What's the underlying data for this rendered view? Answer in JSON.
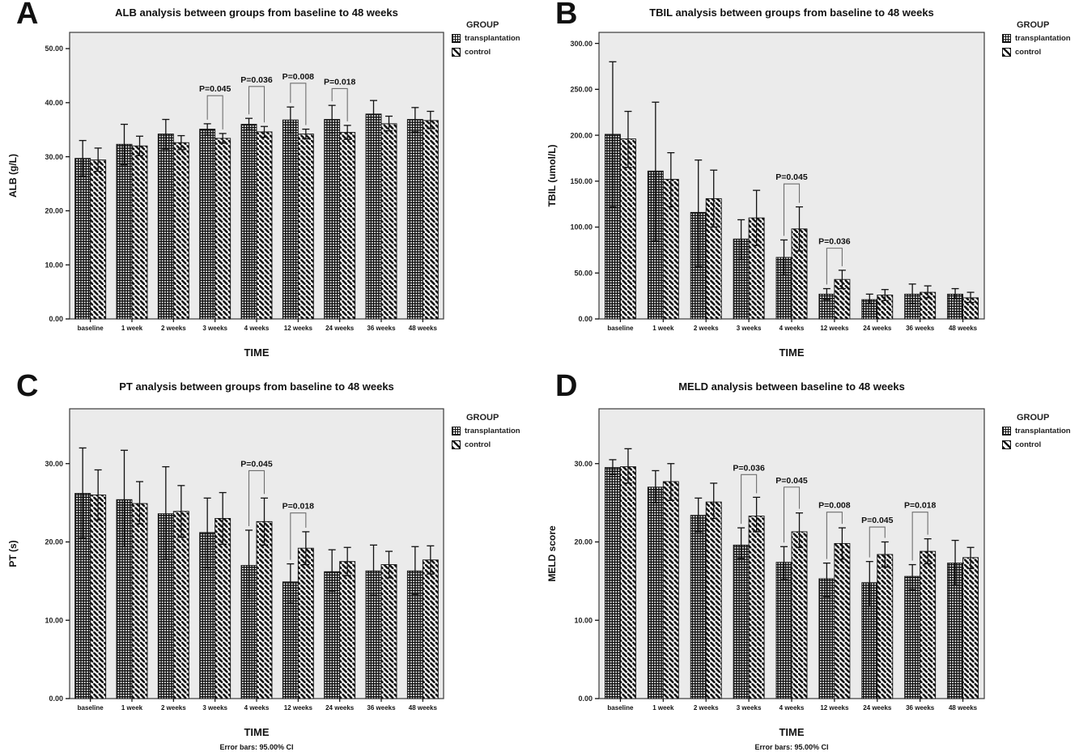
{
  "figure": {
    "background": "#ffffff",
    "plot_background": "#ebebeb",
    "bar_outline_color": "#111111",
    "bracket_color": "#6e6e6e"
  },
  "chart_data": [
    {
      "panel_label": "A",
      "type": "bar",
      "title": "ALB analysis between groups from baseline to 48 weeks",
      "xlabel": "TIME",
      "ylabel": "ALB (g/L)",
      "ylim": [
        0,
        53
      ],
      "yticks": [
        {
          "value": 0,
          "label": "0.00"
        },
        {
          "value": 10,
          "label": "10.00"
        },
        {
          "value": 20,
          "label": "20.00"
        },
        {
          "value": 30,
          "label": "30.00"
        },
        {
          "value": 40,
          "label": "40.00"
        },
        {
          "value": 50,
          "label": "50.00"
        }
      ],
      "categories": [
        "baseline",
        "1 week",
        "2 weeks",
        "3 weeks",
        "4 weeks",
        "12 weeks",
        "24 weeks",
        "36 weeks",
        "48 weeks"
      ],
      "series": [
        {
          "name": "transplantation",
          "pattern": "crosshatch",
          "values": [
            29.7,
            32.3,
            34.2,
            35.1,
            36.0,
            36.8,
            36.9,
            37.9,
            36.9
          ],
          "ci_upper": [
            33.0,
            36.0,
            36.9,
            36.1,
            37.1,
            39.2,
            39.5,
            40.4,
            39.1
          ],
          "ci_lower": [
            26.4,
            28.5,
            31.4,
            34.0,
            35.0,
            34.4,
            34.4,
            35.4,
            34.6
          ]
        },
        {
          "name": "control",
          "pattern": "diagonal",
          "values": [
            29.4,
            32.0,
            32.6,
            33.4,
            34.6,
            34.2,
            34.5,
            36.1,
            36.7
          ],
          "ci_upper": [
            31.6,
            33.8,
            33.9,
            34.3,
            35.6,
            35.1,
            35.8,
            37.5,
            38.4
          ],
          "ci_lower": [
            27.3,
            30.2,
            31.3,
            32.5,
            33.6,
            33.3,
            33.2,
            34.8,
            35.2
          ]
        }
      ],
      "p_annotations": [
        {
          "category": "3 weeks",
          "label": "P=0.045",
          "bracket_top": 41.3
        },
        {
          "category": "4 weeks",
          "label": "P=0.036",
          "bracket_top": 43.0
        },
        {
          "category": "12 weeks",
          "label": "P=0.008",
          "bracket_top": 43.6
        },
        {
          "category": "24 weeks",
          "label": "P=0.018",
          "bracket_top": 42.6
        }
      ],
      "legend": {
        "title": "GROUP",
        "entries": [
          {
            "label": "transplantation"
          },
          {
            "label": "control"
          }
        ]
      }
    },
    {
      "panel_label": "B",
      "type": "bar",
      "title": "TBIL analysis between groups from baseline to 48 weeks",
      "xlabel": "TIME",
      "ylabel": "TBIL (umol/L)",
      "ylim": [
        0,
        312
      ],
      "yticks": [
        {
          "value": 0,
          "label": "0.00"
        },
        {
          "value": 50,
          "label": "50.00"
        },
        {
          "value": 100,
          "label": "100.00"
        },
        {
          "value": 150,
          "label": "150.00"
        },
        {
          "value": 200,
          "label": "200.00"
        },
        {
          "value": 250,
          "label": "250.00"
        },
        {
          "value": 300,
          "label": "300.00"
        }
      ],
      "categories": [
        "baseline",
        "1 week",
        "2 weeks",
        "3 weeks",
        "4 weeks",
        "12 weeks",
        "24 weeks",
        "36 weeks",
        "48 weeks"
      ],
      "series": [
        {
          "name": "transplantation",
          "pattern": "crosshatch",
          "values": [
            201,
            161,
            116,
            87,
            67,
            27,
            21,
            27,
            27
          ],
          "ci_upper": [
            280,
            236,
            173,
            108,
            86,
            33,
            27,
            38,
            33
          ],
          "ci_lower": [
            122,
            85,
            57,
            65,
            48,
            21,
            17,
            17,
            22
          ]
        },
        {
          "name": "control",
          "pattern": "diagonal",
          "values": [
            196,
            152,
            131,
            110,
            98,
            43,
            26,
            29,
            23
          ],
          "ci_upper": [
            226,
            181,
            162,
            140,
            122,
            53,
            32,
            36,
            29
          ],
          "ci_lower": [
            165,
            122,
            100,
            80,
            74,
            33,
            20,
            23,
            18
          ]
        }
      ],
      "p_annotations": [
        {
          "category": "4 weeks",
          "label": "P=0.045",
          "bracket_top": 147
        },
        {
          "category": "12 weeks",
          "label": "P=0.036",
          "bracket_top": 77
        }
      ],
      "legend": {
        "title": "GROUP",
        "entries": [
          {
            "label": "transplantation"
          },
          {
            "label": "control"
          }
        ]
      }
    },
    {
      "panel_label": "C",
      "type": "bar",
      "title": "PT analysis between groups from baseline to 48 weeks",
      "xlabel": "TIME",
      "ylabel": "PT (s)",
      "ylim": [
        0,
        37
      ],
      "yticks": [
        {
          "value": 0,
          "label": "0.00"
        },
        {
          "value": 10,
          "label": "10.00"
        },
        {
          "value": 20,
          "label": "20.00"
        },
        {
          "value": 30,
          "label": "30.00"
        }
      ],
      "categories": [
        "baseline",
        "1 week",
        "2 weeks",
        "3 weeks",
        "4 weeks",
        "12 weeks",
        "24 weeks",
        "36 weeks",
        "48 weeks"
      ],
      "series": [
        {
          "name": "transplantation",
          "pattern": "crosshatch",
          "values": [
            26.2,
            25.4,
            23.6,
            21.2,
            17.0,
            14.9,
            16.2,
            16.3,
            16.3
          ],
          "ci_upper": [
            32.0,
            31.7,
            29.6,
            25.6,
            21.5,
            17.2,
            19.0,
            19.6,
            19.4
          ],
          "ci_lower": [
            20.5,
            19.4,
            17.8,
            16.7,
            12.8,
            12.2,
            13.7,
            13.2,
            13.3
          ]
        },
        {
          "name": "control",
          "pattern": "diagonal",
          "values": [
            26.0,
            24.9,
            23.9,
            23.0,
            22.6,
            19.2,
            17.5,
            17.1,
            17.7
          ],
          "ci_upper": [
            29.2,
            27.7,
            27.2,
            26.3,
            25.6,
            21.3,
            19.3,
            18.8,
            19.5
          ],
          "ci_lower": [
            22.8,
            22.3,
            20.6,
            19.7,
            19.6,
            17.1,
            15.7,
            15.4,
            15.9
          ]
        }
      ],
      "p_annotations": [
        {
          "category": "4 weeks",
          "label": "P=0.045",
          "bracket_top": 29.1
        },
        {
          "category": "12 weeks",
          "label": "P=0.018",
          "bracket_top": 23.7
        }
      ],
      "footnote": "Error bars: 95.00% CI",
      "legend": {
        "title": "GROUP",
        "entries": [
          {
            "label": "transplantation"
          },
          {
            "label": "control"
          }
        ]
      }
    },
    {
      "panel_label": "D",
      "type": "bar",
      "title": "MELD analysis between baseline to 48 weeks",
      "xlabel": "TIME",
      "ylabel": "MELD score",
      "ylim": [
        0,
        37
      ],
      "yticks": [
        {
          "value": 0,
          "label": "0.00"
        },
        {
          "value": 10,
          "label": "10.00"
        },
        {
          "value": 20,
          "label": "20.00"
        },
        {
          "value": 30,
          "label": "30.00"
        }
      ],
      "categories": [
        "baseline",
        "1 week",
        "2 weeks",
        "3 weeks",
        "4 weeks",
        "12 weeks",
        "24 weeks",
        "36 weeks",
        "48 weeks"
      ],
      "series": [
        {
          "name": "transplantation",
          "pattern": "crosshatch",
          "values": [
            29.5,
            27.0,
            23.4,
            19.6,
            17.4,
            15.3,
            14.8,
            15.6,
            17.3
          ],
          "ci_upper": [
            30.5,
            29.1,
            25.6,
            21.8,
            19.4,
            17.3,
            17.5,
            17.1,
            20.2
          ],
          "ci_lower": [
            28.6,
            25.0,
            21.3,
            17.9,
            15.2,
            13.0,
            11.8,
            13.9,
            14.5
          ]
        },
        {
          "name": "control",
          "pattern": "diagonal",
          "values": [
            29.6,
            27.7,
            25.1,
            23.3,
            21.3,
            19.8,
            18.4,
            18.8,
            18.0
          ],
          "ci_upper": [
            31.9,
            30.0,
            27.5,
            25.7,
            23.7,
            21.8,
            20.0,
            20.4,
            19.3
          ],
          "ci_lower": [
            27.5,
            25.3,
            23.0,
            21.3,
            19.3,
            17.8,
            16.8,
            17.2,
            16.6
          ]
        }
      ],
      "p_annotations": [
        {
          "category": "3 weeks",
          "label": "P=0.036",
          "bracket_top": 28.6
        },
        {
          "category": "4 weeks",
          "label": "P=0.045",
          "bracket_top": 27.0
        },
        {
          "category": "12 weeks",
          "label": "P=0.008",
          "bracket_top": 23.8
        },
        {
          "category": "24 weeks",
          "label": "P=0.045",
          "bracket_top": 21.9
        },
        {
          "category": "36 weeks",
          "label": "P=0.018",
          "bracket_top": 23.8
        }
      ],
      "footnote": "Error bars: 95.00% CI",
      "legend": {
        "title": "GROUP",
        "entries": [
          {
            "label": "transplantation"
          },
          {
            "label": "control"
          }
        ]
      }
    }
  ]
}
